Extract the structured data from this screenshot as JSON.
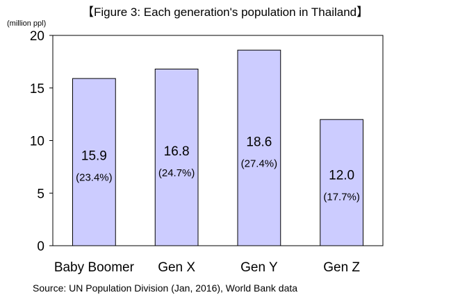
{
  "chart_data": {
    "type": "bar",
    "title": "【Figure 3: Each generation's population in Thailand】",
    "unit_label": "(million ppl)",
    "categories": [
      "Baby Boomer",
      "Gen X",
      "Gen Y",
      "Gen Z"
    ],
    "values": [
      15.9,
      16.8,
      18.6,
      12.0
    ],
    "value_labels": [
      "15.9",
      "16.8",
      "18.6",
      "12.0"
    ],
    "share_labels": [
      "(23.4%)",
      "(24.7%)",
      "(27.4%)",
      "(17.7%)"
    ],
    "ylim": [
      0,
      20
    ],
    "yticks": [
      0,
      5,
      10,
      15,
      20
    ],
    "xlabel": "",
    "ylabel": "",
    "grid": false,
    "legend": "none",
    "bar_color": "#ccccff",
    "bar_edge_color": "#000000",
    "source": "Source: UN  Population Division (Jan, 2016), World Bank data"
  }
}
